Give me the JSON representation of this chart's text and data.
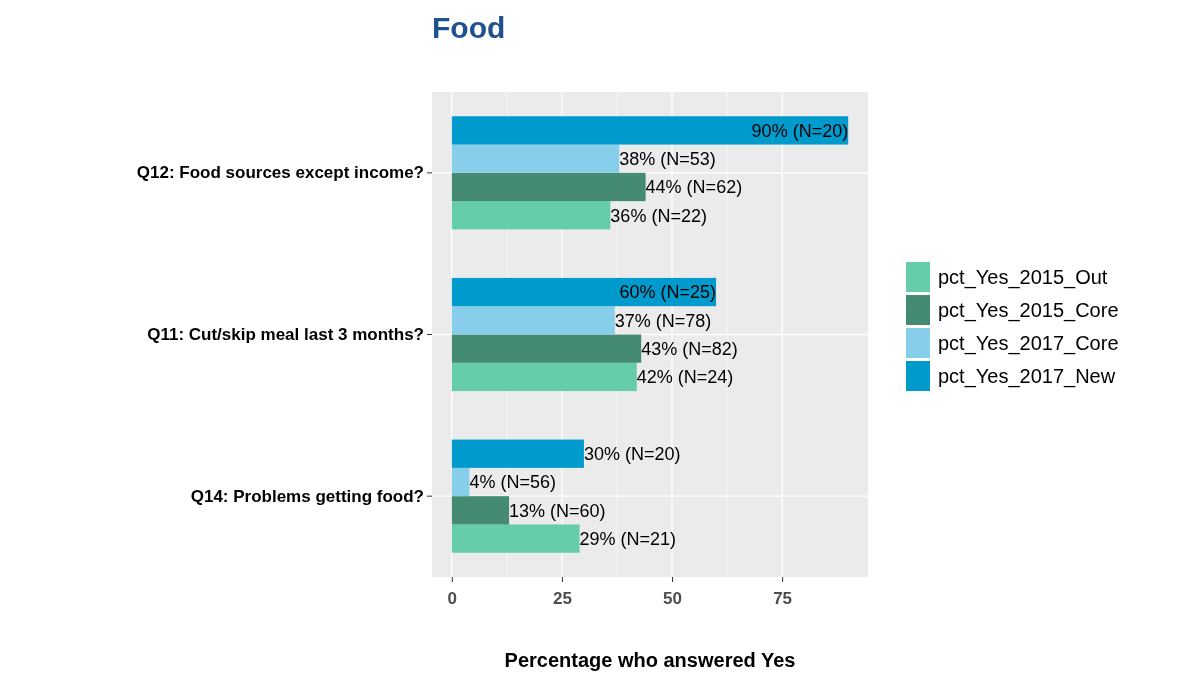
{
  "chart_data": {
    "type": "bar",
    "orientation": "horizontal",
    "title": "Food",
    "xlabel": "Percentage who answered Yes",
    "categories": [
      "Q12: Food sources except income?",
      "Q11: Cut/skip meal last 3 months?",
      "Q14: Problems getting food?"
    ],
    "series": [
      {
        "name": "pct_Yes_2015_Out",
        "color": "#66cdaa",
        "values": [
          36,
          42,
          29
        ],
        "value_labels": [
          "36% (N=22)",
          "42% (N=24)",
          "29% (N=21)"
        ]
      },
      {
        "name": "pct_Yes_2015_Core",
        "color": "#458b74",
        "values": [
          44,
          43,
          13
        ],
        "value_labels": [
          "44% (N=62)",
          "43% (N=82)",
          "13% (N=60)"
        ]
      },
      {
        "name": "pct_Yes_2017_Core",
        "color": "#87ceeb",
        "values": [
          38,
          37,
          4
        ],
        "value_labels": [
          "38% (N=53)",
          "37% (N=78)",
          "4% (N=56)"
        ]
      },
      {
        "name": "pct_Yes_2017_New",
        "color": "#009acd",
        "values": [
          90,
          60,
          30
        ],
        "value_labels": [
          "90% (N=20)",
          "60% (N=25)",
          "30% (N=20)"
        ]
      }
    ],
    "xlim": [
      -4.5,
      94.5
    ],
    "xticks": [
      0,
      25,
      50,
      75
    ],
    "grid": true,
    "legend": "right"
  }
}
